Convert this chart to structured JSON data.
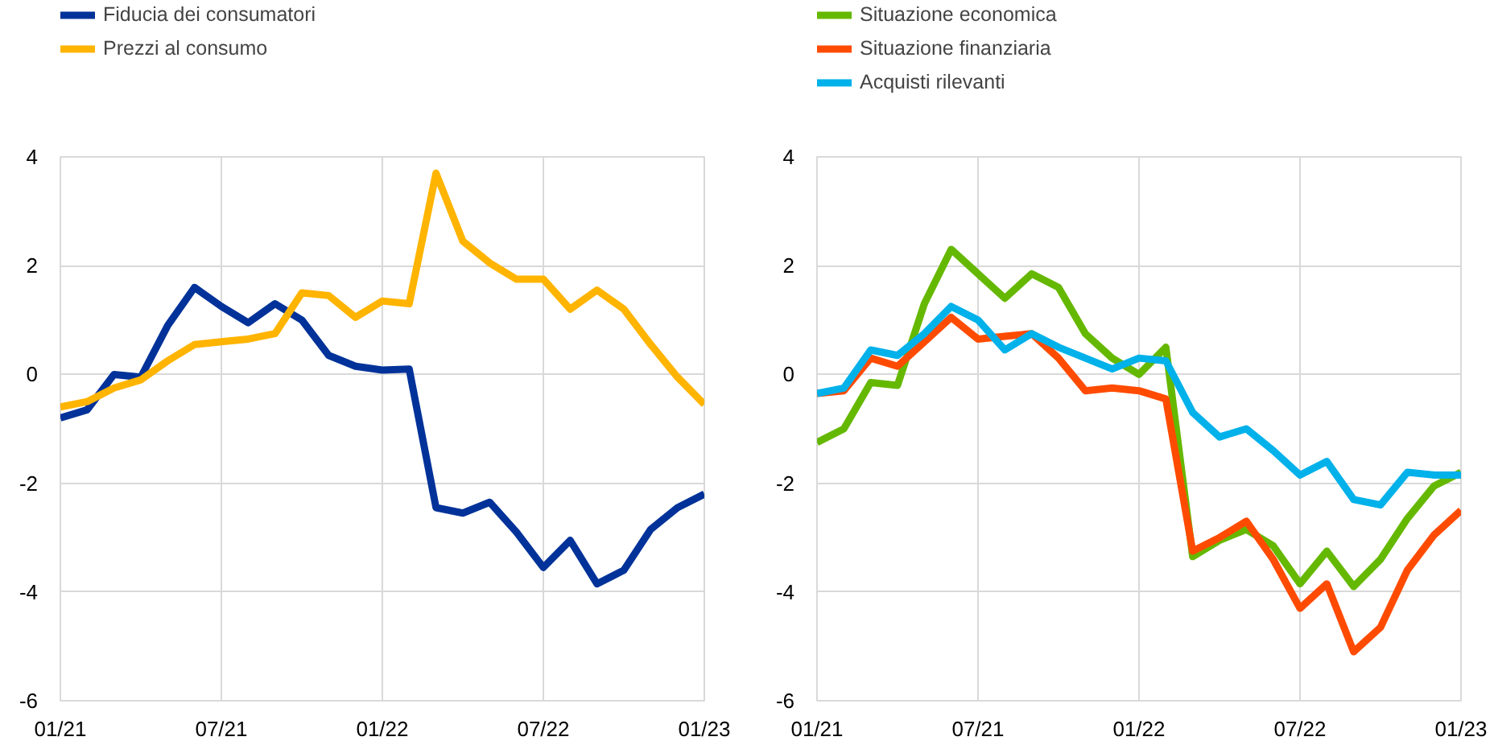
{
  "chart_data": [
    {
      "type": "line",
      "x": [
        "2021-01",
        "2021-02",
        "2021-03",
        "2021-04",
        "2021-05",
        "2021-06",
        "2021-07",
        "2021-08",
        "2021-09",
        "2021-10",
        "2021-11",
        "2021-12",
        "2022-01",
        "2022-02",
        "2022-03",
        "2022-04",
        "2022-05",
        "2022-06",
        "2022-07",
        "2022-08",
        "2022-09",
        "2022-10",
        "2022-11",
        "2022-12",
        "2023-01"
      ],
      "series": [
        {
          "name": "Fiducia dei consumatori",
          "color": "#003299",
          "values": [
            -0.8,
            -0.65,
            0.0,
            -0.05,
            0.9,
            1.6,
            1.25,
            0.95,
            1.3,
            1.0,
            0.35,
            0.15,
            0.08,
            0.1,
            -2.45,
            -2.55,
            -2.35,
            -2.9,
            -3.55,
            -3.05,
            -3.85,
            -3.6,
            -2.85,
            -2.45,
            -2.2
          ]
        },
        {
          "name": "Prezzi al consumo",
          "color": "#ffb400",
          "values": [
            -0.6,
            -0.5,
            -0.25,
            -0.1,
            0.25,
            0.55,
            0.6,
            0.65,
            0.75,
            1.5,
            1.45,
            1.05,
            1.35,
            1.3,
            3.7,
            2.45,
            2.05,
            1.75,
            1.75,
            1.2,
            1.55,
            1.2,
            0.55,
            -0.05,
            -0.55
          ]
        }
      ],
      "xlim": [
        "2021-01",
        "2023-01"
      ],
      "xticks": [
        {
          "value": "2021-01",
          "label": "01/21"
        },
        {
          "value": "2021-07",
          "label": "07/21"
        },
        {
          "value": "2022-01",
          "label": "01/22"
        },
        {
          "value": "2022-07",
          "label": "07/22"
        },
        {
          "value": "2023-01",
          "label": "01/23"
        }
      ],
      "ylim": [
        -6,
        4
      ],
      "yticks": [
        -6,
        -4,
        -2,
        0,
        2,
        4
      ],
      "grid": true,
      "legend": "top left",
      "line_style": "solid",
      "marker": "none"
    },
    {
      "type": "line",
      "x": [
        "2021-01",
        "2021-02",
        "2021-03",
        "2021-04",
        "2021-05",
        "2021-06",
        "2021-07",
        "2021-08",
        "2021-09",
        "2021-10",
        "2021-11",
        "2021-12",
        "2022-01",
        "2022-02",
        "2022-03",
        "2022-04",
        "2022-05",
        "2022-06",
        "2022-07",
        "2022-08",
        "2022-09",
        "2022-10",
        "2022-11",
        "2022-12",
        "2023-01"
      ],
      "series": [
        {
          "name": "Situazione economica",
          "color": "#65b800",
          "values": [
            -1.25,
            -1.0,
            -0.15,
            -0.2,
            1.3,
            2.3,
            1.85,
            1.4,
            1.85,
            1.6,
            0.75,
            0.3,
            0.0,
            0.5,
            -3.35,
            -3.05,
            -2.85,
            -3.15,
            -3.85,
            -3.25,
            -3.9,
            -3.4,
            -2.65,
            -2.05,
            -1.8
          ]
        },
        {
          "name": "Situazione finanziaria",
          "color": "#ff4b00",
          "values": [
            -0.35,
            -0.3,
            0.3,
            0.15,
            0.6,
            1.05,
            0.65,
            0.7,
            0.75,
            0.3,
            -0.3,
            -0.25,
            -0.3,
            -0.45,
            -3.25,
            -3.0,
            -2.7,
            -3.4,
            -4.3,
            -3.85,
            -5.1,
            -4.65,
            -3.6,
            -2.95,
            -2.5
          ]
        },
        {
          "name": "Acquisti rilevanti",
          "color": "#00b1ea",
          "values": [
            -0.35,
            -0.25,
            0.45,
            0.35,
            0.75,
            1.25,
            1.0,
            0.45,
            0.75,
            0.5,
            0.3,
            0.1,
            0.3,
            0.25,
            -0.7,
            -1.15,
            -1.0,
            -1.4,
            -1.85,
            -1.6,
            -2.3,
            -2.4,
            -1.8,
            -1.85,
            -1.85
          ]
        }
      ],
      "xlim": [
        "2021-01",
        "2023-01"
      ],
      "xticks": [
        {
          "value": "2021-01",
          "label": "01/21"
        },
        {
          "value": "2021-07",
          "label": "07/21"
        },
        {
          "value": "2022-01",
          "label": "01/22"
        },
        {
          "value": "2022-07",
          "label": "07/22"
        },
        {
          "value": "2023-01",
          "label": "01/23"
        }
      ],
      "ylim": [
        -6,
        4
      ],
      "yticks": [
        -6,
        -4,
        -2,
        0,
        2,
        4
      ],
      "grid": true,
      "legend": "top left",
      "line_style": "solid",
      "marker": "none"
    }
  ]
}
